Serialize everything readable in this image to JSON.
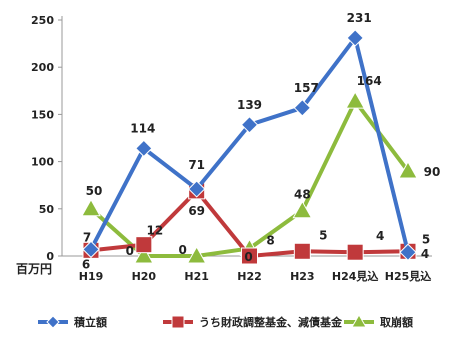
{
  "chart_data": {
    "type": "line",
    "categories": [
      "H19",
      "H20",
      "H21",
      "H22",
      "H23",
      "H24見込",
      "H25見込"
    ],
    "ylim": [
      0,
      250
    ],
    "yticks": [
      0,
      50,
      100,
      150,
      200,
      250
    ],
    "ylabel": "百万円",
    "grid": false,
    "legend_position": "bottom",
    "series": [
      {
        "name": "積立額",
        "color": "#3f72c8",
        "marker": "diamond",
        "values": [
          7,
          114,
          71,
          139,
          157,
          231,
          4
        ],
        "labels": [
          "7",
          "114",
          "71",
          "139",
          "157",
          "231",
          "4"
        ]
      },
      {
        "name": "うち財政調整基金、減債基金",
        "color": "#c0393b",
        "marker": "square",
        "values": [
          6,
          12,
          69,
          0,
          5,
          4,
          5
        ],
        "labels": [
          "6",
          "12",
          "69",
          "0",
          "5",
          "4",
          "5"
        ]
      },
      {
        "name": "取崩額",
        "color": "#8dbb3d",
        "marker": "triangle",
        "values": [
          50,
          0,
          0,
          8,
          48,
          164,
          90
        ],
        "labels": [
          "50",
          "0",
          "0",
          "8",
          "48",
          "164",
          "90"
        ]
      }
    ]
  }
}
